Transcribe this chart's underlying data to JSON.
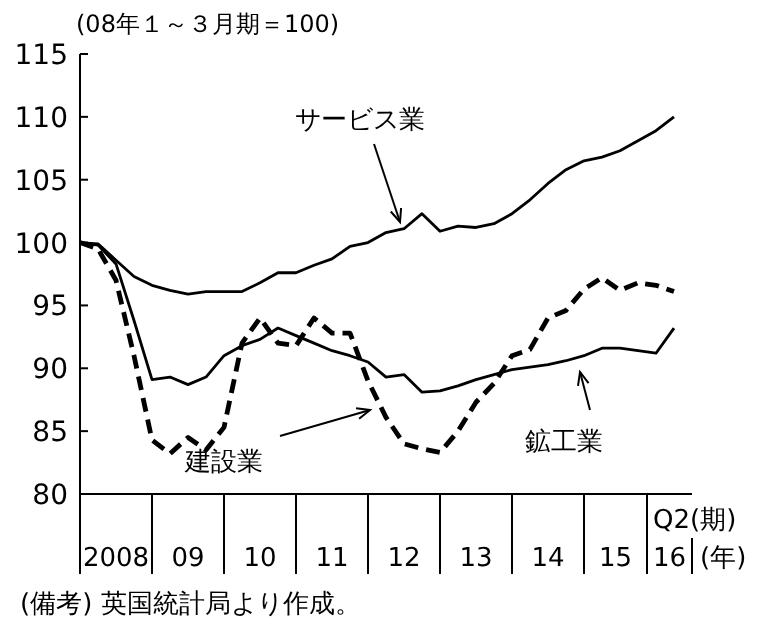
{
  "chart_data": {
    "type": "line",
    "title": "(08年１～３月期＝100)",
    "categories": [
      null,
      null,
      "2008",
      null,
      null,
      null,
      "09",
      null,
      null,
      null,
      "10",
      null,
      null,
      null,
      "11",
      null,
      null,
      null,
      "12",
      null,
      null,
      null,
      "13",
      null,
      null,
      null,
      "14",
      null,
      null,
      null,
      "15",
      null,
      null,
      "16"
    ],
    "series": [
      {
        "color": "#000000",
        "line_style": "solid",
        "values": [
          100,
          99.9,
          98.6,
          97.3,
          96.6,
          96.2,
          95.9,
          96.1,
          96.1,
          96.1,
          96.8,
          97.6,
          97.6,
          98.2,
          98.7,
          99.7,
          100,
          100.8,
          101.1,
          102.3,
          100.9,
          101.3,
          101.2,
          101.5,
          102.3,
          103.4,
          104.7,
          105.8,
          106.5,
          106.8,
          107.3,
          108.1,
          108.9,
          110
        ]
      },
      {
        "color": "#000000",
        "line_style": "solid",
        "values": [
          100,
          99.8,
          98.3,
          93.8,
          89.1,
          89.3,
          88.7,
          89.3,
          91,
          91.8,
          92.3,
          93.2,
          92.6,
          92,
          91.4,
          91,
          90.5,
          89.3,
          89.5,
          88.1,
          88.2,
          88.6,
          89.1,
          89.5,
          89.9,
          90.1,
          90.3,
          90.6,
          91,
          91.6,
          91.6,
          91.4,
          91.2,
          93.2
        ]
      },
      {
        "color": "#000000",
        "line_style": "dashed",
        "values": [
          100,
          99.5,
          97,
          91,
          84.3,
          83.2,
          84.5,
          83.5,
          85.3,
          92,
          94,
          92,
          91.8,
          94,
          92.8,
          92.8,
          89,
          86.1,
          84,
          83.6,
          83.3,
          85,
          87.3,
          88.8,
          91,
          91.5,
          94,
          94.6,
          96.3,
          97.2,
          96.2,
          96.8,
          96.6,
          96.1
        ]
      }
    ],
    "ylim": [
      80,
      115
    ],
    "yticks": [
      80,
      85,
      90,
      95,
      100,
      105,
      110,
      115
    ],
    "grid": false,
    "annotations": [
      "サービス業",
      "建設業",
      "鉱工業",
      "Q2(期)",
      "(年)",
      "(備考) 英国統計局より作成。"
    ]
  }
}
